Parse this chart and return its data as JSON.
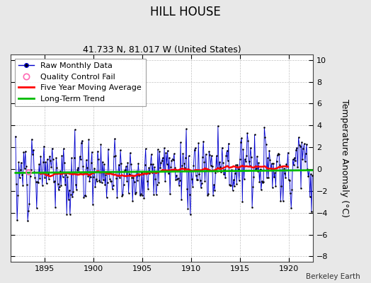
{
  "title": "HILL HOUSE",
  "subtitle": "41.733 N, 81.017 W (United States)",
  "ylabel": "Temperature Anomaly (°C)",
  "watermark": "Berkeley Earth",
  "xlim": [
    1891.5,
    1922.5
  ],
  "ylim": [
    -8.5,
    10.5
  ],
  "yticks": [
    -8,
    -6,
    -4,
    -2,
    0,
    2,
    4,
    6,
    8,
    10
  ],
  "xticks": [
    1895,
    1900,
    1905,
    1910,
    1915,
    1920
  ],
  "bg_color": "#e8e8e8",
  "plot_bg_color": "#ffffff",
  "raw_line_color": "#0000cc",
  "raw_fill_color": "#8888ff",
  "raw_dot_color": "#000000",
  "moving_avg_color": "#ff0000",
  "trend_color": "#00bb00",
  "qc_fail_color": "#ff69b4",
  "title_fontsize": 12,
  "subtitle_fontsize": 9,
  "tick_fontsize": 8,
  "ylabel_fontsize": 9,
  "legend_fontsize": 8
}
